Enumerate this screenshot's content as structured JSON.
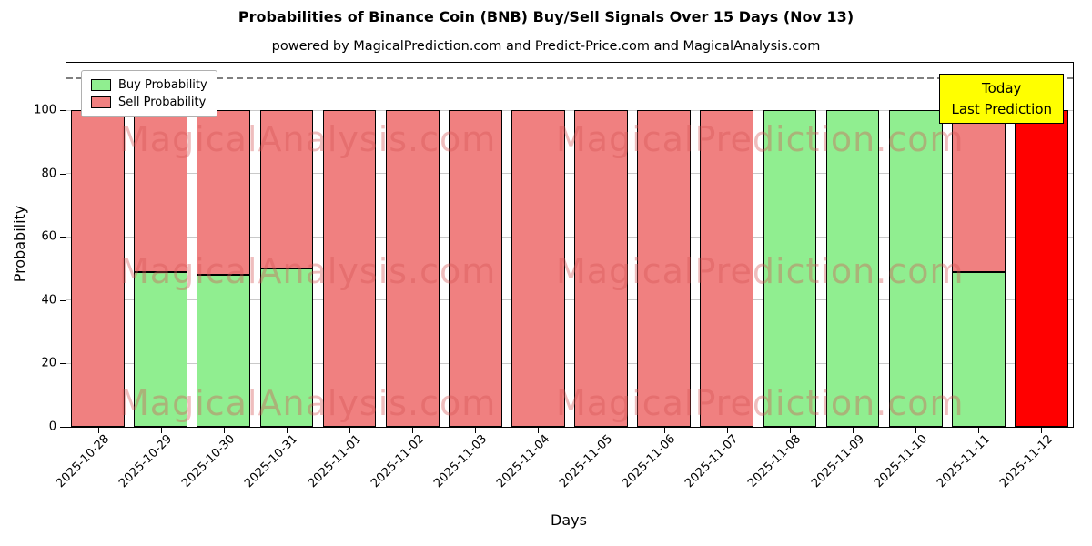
{
  "chart": {
    "title": "Probabilities of Binance Coin (BNB) Buy/Sell Signals Over 15 Days (Nov 13)",
    "subtitle": "powered by MagicalPrediction.com and Predict-Price.com and MagicalAnalysis.com",
    "xlabel": "Days",
    "ylabel": "Probability",
    "annotation_line1": "Today",
    "annotation_line2": "Last Prediction"
  },
  "chart_data": {
    "type": "bar",
    "stacked": true,
    "title": "Probabilities of Binance Coin (BNB) Buy/Sell Signals Over 15 Days (Nov 13)",
    "xlabel": "Days",
    "ylabel": "Probability",
    "categories": [
      "2025-10-28",
      "2025-10-29",
      "2025-10-30",
      "2025-10-31",
      "2025-11-01",
      "2025-11-02",
      "2025-11-03",
      "2025-11-04",
      "2025-11-05",
      "2025-11-06",
      "2025-11-07",
      "2025-11-08",
      "2025-11-09",
      "2025-11-10",
      "2025-11-11",
      "2025-11-12"
    ],
    "series": [
      {
        "name": "Buy Probability",
        "color": "#90ee90",
        "values": [
          0,
          49,
          48,
          50,
          0,
          0,
          0,
          0,
          0,
          0,
          0,
          100,
          100,
          100,
          49,
          0
        ]
      },
      {
        "name": "Sell Probability",
        "color": "#f08080",
        "values": [
          100,
          51,
          52,
          50,
          100,
          100,
          100,
          100,
          100,
          100,
          100,
          0,
          0,
          0,
          51,
          0
        ]
      }
    ],
    "today_bar": {
      "index": 15,
      "value": 100,
      "color": "#ff0000"
    },
    "ylim": [
      0,
      115
    ],
    "yticks": [
      0,
      20,
      40,
      60,
      80,
      100
    ],
    "dashed_line_y": 110,
    "grid": true,
    "legend_position": "upper left",
    "annotation_bg": "#ffff00",
    "watermarks": [
      "MagicalAnalysis.com",
      "MagicalPrediction.com"
    ]
  }
}
